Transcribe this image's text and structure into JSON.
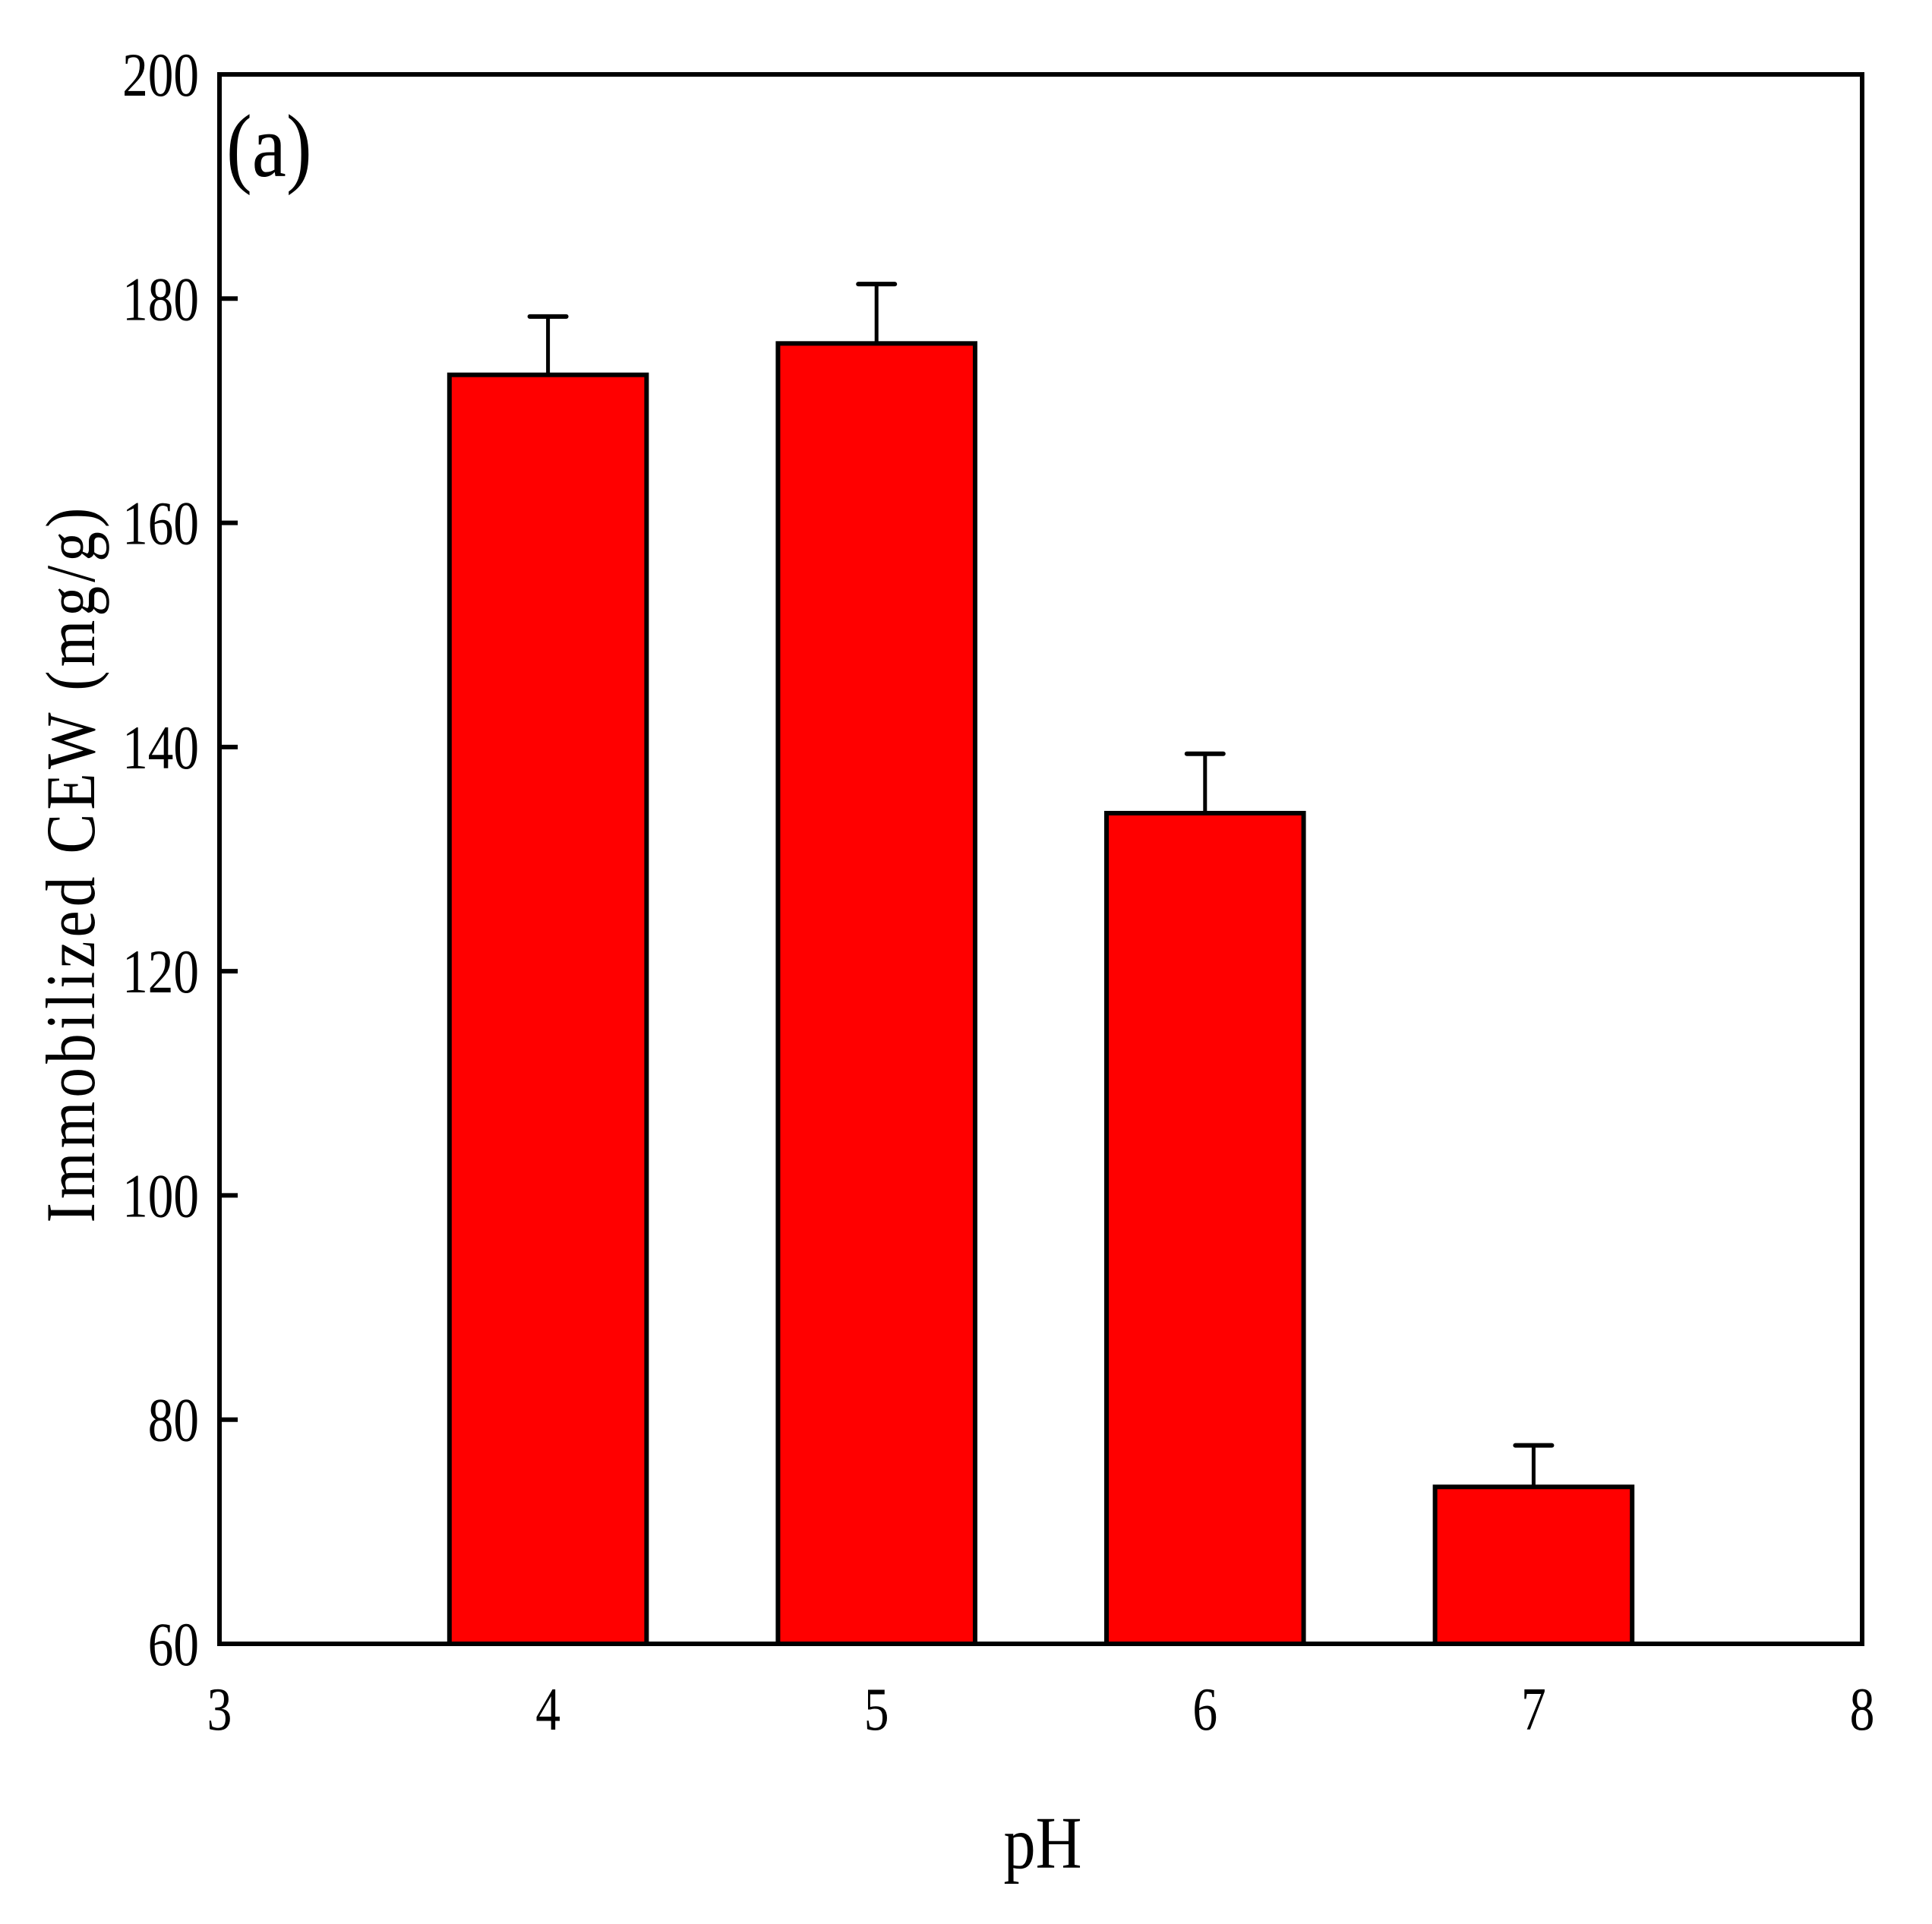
{
  "chart_data": {
    "type": "bar",
    "panel_label": "(a)",
    "title": "",
    "xlabel": "pH",
    "ylabel": "Immobilized CEW (mg/g)",
    "categories": [
      "4",
      "5",
      "6",
      "7"
    ],
    "x": [
      4,
      5,
      6,
      7
    ],
    "values": [
      173.2,
      176.0,
      134.1,
      74.0
    ],
    "errors": [
      5.2,
      5.3,
      5.3,
      3.7
    ],
    "xlim": [
      3,
      8
    ],
    "ylim": [
      60,
      200
    ],
    "xticks": [
      3,
      4,
      5,
      6,
      7,
      8
    ],
    "yticks": [
      60,
      80,
      100,
      120,
      140,
      160,
      180,
      200
    ],
    "bar_width": 0.6,
    "bar_color": "#ff0000",
    "edge_color": "#000000",
    "grid": false,
    "legend": null
  }
}
